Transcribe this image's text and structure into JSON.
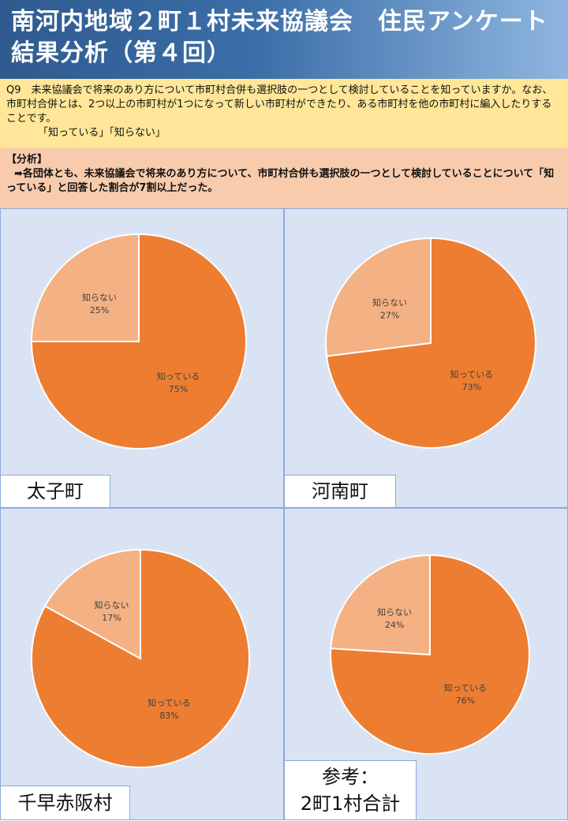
{
  "header": {
    "title": "南河内地域２町１村未来協議会　住民アンケート　結果分析（第４回）"
  },
  "question": {
    "text": "Q9　未来協議会で将来のあり方について市町村合併も選択肢の一つとして検討していることを知っていますか。なお、市町村合併とは、2つ以上の市町村が1つになって新しい市町村ができたり、ある市町村を他の市町村に編入したりすることです。",
    "options": "「知っている」「知らない」"
  },
  "analysis": {
    "heading": "【分析】",
    "text": "➡各団体とも、未来協議会で将来のあり方について、市町村合併も選択肢の一つとして検討していることについて「知っている」と回答した割合が7割以上だった。"
  },
  "colors": {
    "known": "#ed7d31",
    "unknown": "#f4b183",
    "panel_bg": "#dae3f3"
  },
  "chart_data": [
    {
      "type": "pie",
      "title": "太子町",
      "categories": [
        "知っている",
        "知らない"
      ],
      "values": [
        75,
        25
      ],
      "value_labels": [
        "75%",
        "25%"
      ]
    },
    {
      "type": "pie",
      "title": "河南町",
      "categories": [
        "知っている",
        "知らない"
      ],
      "values": [
        73,
        27
      ],
      "value_labels": [
        "73%",
        "27%"
      ]
    },
    {
      "type": "pie",
      "title": "千早赤阪村",
      "categories": [
        "知っている",
        "知らない"
      ],
      "values": [
        83,
        17
      ],
      "value_labels": [
        "83%",
        "17%"
      ]
    },
    {
      "type": "pie",
      "title": "参考：\n2町1村合計",
      "categories": [
        "知っている",
        "知らない"
      ],
      "values": [
        76,
        24
      ],
      "value_labels": [
        "76%",
        "24%"
      ]
    }
  ]
}
